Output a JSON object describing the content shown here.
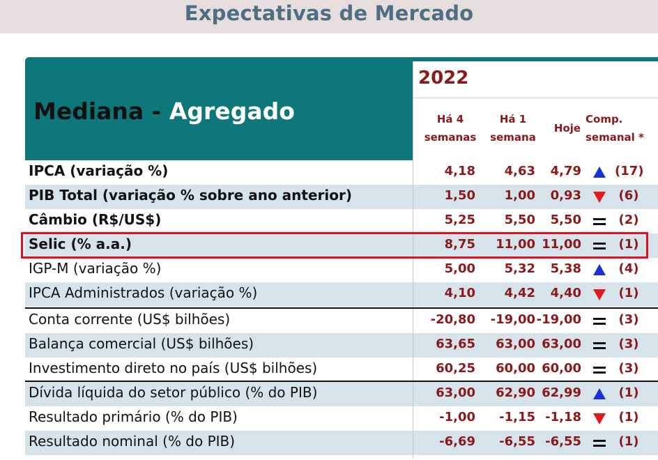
{
  "title": "Expectativas de Mercado",
  "header": {
    "prefix": "Mediana",
    "separator": " - ",
    "suffix": "Agregado",
    "year": "2022",
    "columns": {
      "c1_line1": "Há 4",
      "c1_line2": "semanas",
      "c2_line1": "Há 1",
      "c2_line2": "semana",
      "c3": "Hoje",
      "c4_line1": "Comp.",
      "c4_line2": "semanal *"
    }
  },
  "rows": [
    {
      "label": "IPCA (variação %)",
      "h4": "4,18",
      "h1": "4,63",
      "today": "4,79",
      "trend": "up",
      "weeks": "(17)"
    },
    {
      "label": "PIB Total (variação % sobre ano anterior)",
      "h4": "1,50",
      "h1": "1,00",
      "today": "0,93",
      "trend": "down",
      "weeks": "(6)"
    },
    {
      "label": "Câmbio (R$/US$)",
      "h4": "5,25",
      "h1": "5,50",
      "today": "5,50",
      "trend": "equal",
      "weeks": "(2)"
    },
    {
      "label": "Selic (% a.a.)",
      "h4": "8,75",
      "h1": "11,00",
      "today": "11,00",
      "trend": "equal",
      "weeks": "(1)"
    },
    {
      "label": "IGP-M (variação %)",
      "h4": "5,00",
      "h1": "5,32",
      "today": "5,38",
      "trend": "up",
      "weeks": "(4)"
    },
    {
      "label": "IPCA Administrados (variação %)",
      "h4": "4,10",
      "h1": "4,42",
      "today": "4,40",
      "trend": "down",
      "weeks": "(1)"
    },
    {
      "label": "Conta corrente (US$ bilhões)",
      "h4": "-20,80",
      "h1": "-19,00",
      "today": "-19,00",
      "trend": "equal",
      "weeks": "(3)"
    },
    {
      "label": "Balança comercial (US$ bilhões)",
      "h4": "63,65",
      "h1": "63,00",
      "today": "63,00",
      "trend": "equal",
      "weeks": "(3)"
    },
    {
      "label": "Investimento direto no país (US$ bilhões)",
      "h4": "60,25",
      "h1": "60,00",
      "today": "60,00",
      "trend": "equal",
      "weeks": "(3)"
    },
    {
      "label": "Dívida líquida do setor público (% do PIB)",
      "h4": "63,00",
      "h1": "62,90",
      "today": "62,99",
      "trend": "up",
      "weeks": "(1)"
    },
    {
      "label": "Resultado primário (% do PIB)",
      "h4": "-1,00",
      "h1": "-1,15",
      "today": "-1,18",
      "trend": "down",
      "weeks": "(1)"
    },
    {
      "label": "Resultado nominal (% do PIB)",
      "h4": "-6,69",
      "h1": "-6,55",
      "today": "-6,55",
      "trend": "equal",
      "weeks": "(1)"
    }
  ],
  "colors": {
    "header_teal": "#0e7779",
    "value_red": "#8a1a1a",
    "row_shade": "#d6e3ea",
    "arrow_up_blue": "#1a2fd6",
    "arrow_down_red": "#e01a1a",
    "highlight_red": "#e0101e"
  },
  "icons": {
    "up": "triangle-up-icon",
    "down": "triangle-down-icon",
    "equal": "equals-icon"
  }
}
